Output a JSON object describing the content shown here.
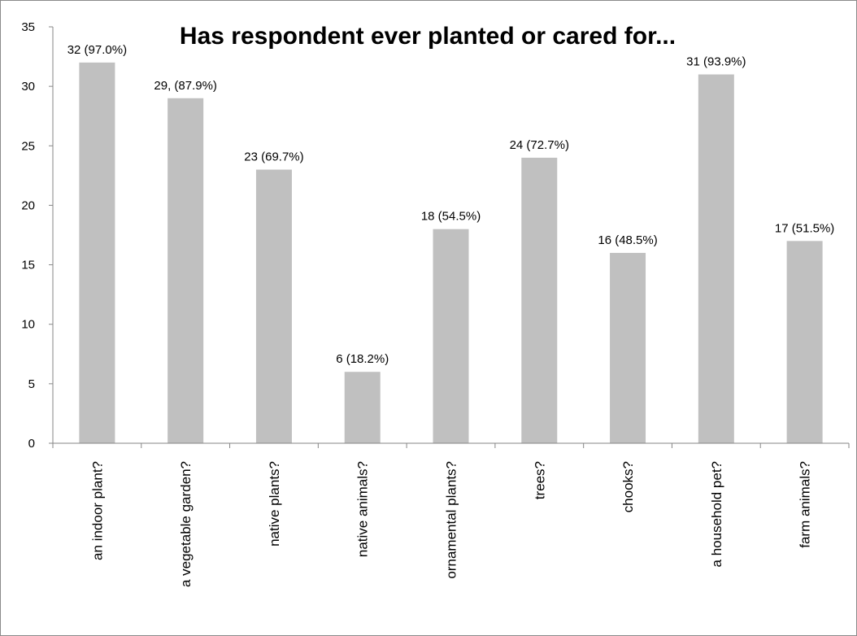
{
  "chart_data": {
    "type": "bar",
    "title": "Has respondent ever planted or cared for...",
    "categories": [
      "an indoor plant?",
      "a vegetable garden?",
      "native plants?",
      "native animals?",
      "ornamental plants?",
      "trees?",
      "chooks?",
      "a household pet?",
      "farm animals?"
    ],
    "values": [
      32,
      29,
      23,
      6,
      18,
      24,
      16,
      31,
      17
    ],
    "data_labels": [
      "32 (97.0%)",
      "29, (87.9%)",
      "23 (69.7%)",
      "6 (18.2%)",
      "18 (54.5%)",
      "24 (72.7%)",
      "16 (48.5%)",
      "31 (93.9%)",
      "17 (51.5%)"
    ],
    "ylim": [
      0,
      35
    ],
    "yticks": [
      0,
      5,
      10,
      15,
      20,
      25,
      30,
      35
    ],
    "grid": false,
    "legend": "none",
    "bar_color": "#c0c0c0",
    "axis_color": "#868686"
  }
}
